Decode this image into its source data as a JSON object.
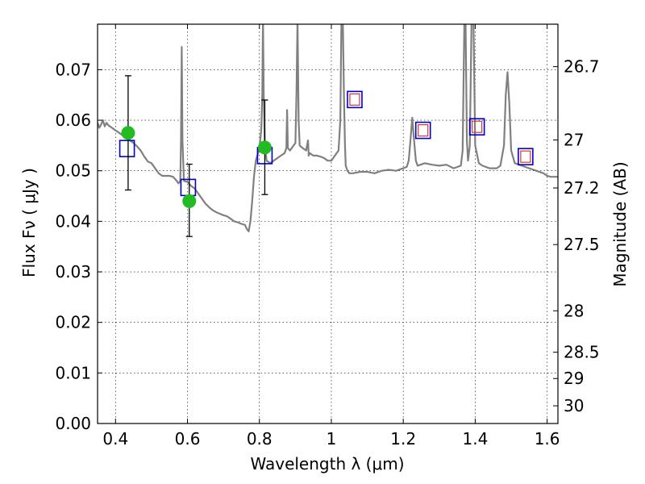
{
  "chart_data": {
    "type": "scatter",
    "xlabel": "Wavelength  λ (μm)",
    "ylabel": "Flux  Fν  ( μJy )",
    "ylabel_right": "Magnitude (AB)",
    "xlim": [
      0.35,
      1.63
    ],
    "ylim": [
      0.0,
      0.079
    ],
    "grid": true,
    "x_ticks": [
      {
        "value": 0.4,
        "label": "0.4"
      },
      {
        "value": 0.6,
        "label": "0.6"
      },
      {
        "value": 0.8,
        "label": "0.8"
      },
      {
        "value": 1.0,
        "label": "1"
      },
      {
        "value": 1.2,
        "label": "1.2"
      },
      {
        "value": 1.4,
        "label": "1.4"
      },
      {
        "value": 1.6,
        "label": "1.6"
      }
    ],
    "y_ticks": [
      {
        "value": 0.0,
        "label": "0.00"
      },
      {
        "value": 0.01,
        "label": "0.01"
      },
      {
        "value": 0.02,
        "label": "0.02"
      },
      {
        "value": 0.03,
        "label": "0.03"
      },
      {
        "value": 0.04,
        "label": "0.04"
      },
      {
        "value": 0.05,
        "label": "0.05"
      },
      {
        "value": 0.06,
        "label": "0.06"
      },
      {
        "value": 0.07,
        "label": "0.07"
      }
    ],
    "right_ticks": [
      {
        "flux": 0.0706,
        "label": "26.7"
      },
      {
        "flux": 0.0561,
        "label": "27"
      },
      {
        "flux": 0.0466,
        "label": "27.2"
      },
      {
        "flux": 0.0354,
        "label": "27.5"
      },
      {
        "flux": 0.0223,
        "label": "28"
      },
      {
        "flux": 0.0141,
        "label": "28.5"
      },
      {
        "flux": 0.0089,
        "label": "29"
      },
      {
        "flux": 0.0035,
        "label": "30"
      }
    ],
    "series": [
      {
        "kind": "line",
        "color": "#808080",
        "points": [
          [
            0.35,
            0.0595
          ],
          [
            0.355,
            0.0585
          ],
          [
            0.36,
            0.0592
          ],
          [
            0.365,
            0.06
          ],
          [
            0.37,
            0.0588
          ],
          [
            0.375,
            0.0595
          ],
          [
            0.38,
            0.059
          ],
          [
            0.39,
            0.0585
          ],
          [
            0.4,
            0.058
          ],
          [
            0.41,
            0.0575
          ],
          [
            0.42,
            0.057
          ],
          [
            0.43,
            0.0565
          ],
          [
            0.44,
            0.056
          ],
          [
            0.45,
            0.0555
          ],
          [
            0.46,
            0.0548
          ],
          [
            0.47,
            0.054
          ],
          [
            0.48,
            0.0528
          ],
          [
            0.49,
            0.0518
          ],
          [
            0.5,
            0.0515
          ],
          [
            0.51,
            0.0505
          ],
          [
            0.52,
            0.0495
          ],
          [
            0.53,
            0.049
          ],
          [
            0.54,
            0.049
          ],
          [
            0.55,
            0.049
          ],
          [
            0.56,
            0.0488
          ],
          [
            0.57,
            0.048
          ],
          [
            0.575,
            0.0475
          ],
          [
            0.58,
            0.048
          ],
          [
            0.582,
            0.056
          ],
          [
            0.584,
            0.0745
          ],
          [
            0.586,
            0.056
          ],
          [
            0.59,
            0.048
          ],
          [
            0.6,
            0.0478
          ],
          [
            0.61,
            0.047
          ],
          [
            0.62,
            0.0465
          ],
          [
            0.63,
            0.0455
          ],
          [
            0.64,
            0.0445
          ],
          [
            0.65,
            0.0435
          ],
          [
            0.66,
            0.0428
          ],
          [
            0.67,
            0.0422
          ],
          [
            0.68,
            0.0418
          ],
          [
            0.69,
            0.0415
          ],
          [
            0.7,
            0.0412
          ],
          [
            0.71,
            0.041
          ],
          [
            0.72,
            0.0405
          ],
          [
            0.73,
            0.04
          ],
          [
            0.74,
            0.0398
          ],
          [
            0.75,
            0.0395
          ],
          [
            0.76,
            0.0393
          ],
          [
            0.765,
            0.0385
          ],
          [
            0.77,
            0.038
          ],
          [
            0.775,
            0.04
          ],
          [
            0.78,
            0.044
          ],
          [
            0.785,
            0.049
          ],
          [
            0.79,
            0.052
          ],
          [
            0.8,
            0.0545
          ],
          [
            0.805,
            0.058
          ],
          [
            0.808,
            0.065
          ],
          [
            0.81,
            0.08
          ],
          [
            0.812,
            0.065
          ],
          [
            0.815,
            0.055
          ],
          [
            0.82,
            0.052
          ],
          [
            0.83,
            0.0515
          ],
          [
            0.84,
            0.052
          ],
          [
            0.85,
            0.0525
          ],
          [
            0.86,
            0.053
          ],
          [
            0.87,
            0.0535
          ],
          [
            0.875,
            0.0545
          ],
          [
            0.877,
            0.062
          ],
          [
            0.879,
            0.0545
          ],
          [
            0.885,
            0.054
          ],
          [
            0.89,
            0.0545
          ],
          [
            0.895,
            0.055
          ],
          [
            0.9,
            0.0555
          ],
          [
            0.903,
            0.065
          ],
          [
            0.906,
            0.08
          ],
          [
            0.909,
            0.06
          ],
          [
            0.912,
            0.055
          ],
          [
            0.92,
            0.0545
          ],
          [
            0.93,
            0.054
          ],
          [
            0.935,
            0.056
          ],
          [
            0.937,
            0.053
          ],
          [
            0.94,
            0.0535
          ],
          [
            0.95,
            0.053
          ],
          [
            0.96,
            0.053
          ],
          [
            0.97,
            0.0528
          ],
          [
            0.98,
            0.0525
          ],
          [
            0.99,
            0.052
          ],
          [
            1.0,
            0.052
          ],
          [
            1.01,
            0.053
          ],
          [
            1.02,
            0.054
          ],
          [
            1.025,
            0.06
          ],
          [
            1.028,
            0.08
          ],
          [
            1.032,
            0.08
          ],
          [
            1.035,
            0.065
          ],
          [
            1.038,
            0.055
          ],
          [
            1.04,
            0.051
          ],
          [
            1.045,
            0.05
          ],
          [
            1.05,
            0.0495
          ],
          [
            1.06,
            0.0495
          ],
          [
            1.08,
            0.0498
          ],
          [
            1.1,
            0.0498
          ],
          [
            1.12,
            0.0495
          ],
          [
            1.14,
            0.05
          ],
          [
            1.16,
            0.0502
          ],
          [
            1.18,
            0.05
          ],
          [
            1.2,
            0.0505
          ],
          [
            1.21,
            0.0508
          ],
          [
            1.215,
            0.052
          ],
          [
            1.22,
            0.056
          ],
          [
            1.225,
            0.0605
          ],
          [
            1.23,
            0.056
          ],
          [
            1.235,
            0.052
          ],
          [
            1.24,
            0.051
          ],
          [
            1.26,
            0.0515
          ],
          [
            1.28,
            0.0512
          ],
          [
            1.3,
            0.051
          ],
          [
            1.32,
            0.0512
          ],
          [
            1.34,
            0.0505
          ],
          [
            1.36,
            0.051
          ],
          [
            1.365,
            0.054
          ],
          [
            1.37,
            0.08
          ],
          [
            1.373,
            0.08
          ],
          [
            1.377,
            0.056
          ],
          [
            1.38,
            0.052
          ],
          [
            1.385,
            0.055
          ],
          [
            1.39,
            0.08
          ],
          [
            1.395,
            0.08
          ],
          [
            1.4,
            0.055
          ],
          [
            1.41,
            0.0515
          ],
          [
            1.42,
            0.051
          ],
          [
            1.44,
            0.0505
          ],
          [
            1.46,
            0.0505
          ],
          [
            1.47,
            0.051
          ],
          [
            1.48,
            0.055
          ],
          [
            1.485,
            0.065
          ],
          [
            1.49,
            0.0695
          ],
          [
            1.495,
            0.063
          ],
          [
            1.5,
            0.054
          ],
          [
            1.51,
            0.0515
          ],
          [
            1.53,
            0.051
          ],
          [
            1.55,
            0.0505
          ],
          [
            1.57,
            0.05
          ],
          [
            1.59,
            0.0495
          ],
          [
            1.6,
            0.049
          ],
          [
            1.61,
            0.0488
          ],
          [
            1.63,
            0.0488
          ]
        ]
      },
      {
        "kind": "blue-squares",
        "color": "#0000cc",
        "points": [
          [
            0.432,
            0.0544
          ],
          [
            0.602,
            0.0467
          ],
          [
            0.815,
            0.053
          ],
          [
            1.065,
            0.0641
          ],
          [
            1.255,
            0.058
          ],
          [
            1.405,
            0.0587
          ],
          [
            1.54,
            0.0528
          ]
        ]
      },
      {
        "kind": "red-squares",
        "color": "#dd3333",
        "points": [
          [
            1.065,
            0.0641
          ],
          [
            1.255,
            0.058
          ],
          [
            1.405,
            0.0587
          ],
          [
            1.54,
            0.0528
          ]
        ]
      },
      {
        "kind": "green-points-errorbars",
        "color": "#22bb22",
        "points": [
          {
            "x": 0.435,
            "y": 0.0575,
            "ylo": 0.0462,
            "yhi": 0.0688
          },
          {
            "x": 0.605,
            "y": 0.044,
            "ylo": 0.037,
            "yhi": 0.0513
          },
          {
            "x": 0.815,
            "y": 0.0546,
            "ylo": 0.0453,
            "yhi": 0.064
          }
        ]
      }
    ]
  }
}
